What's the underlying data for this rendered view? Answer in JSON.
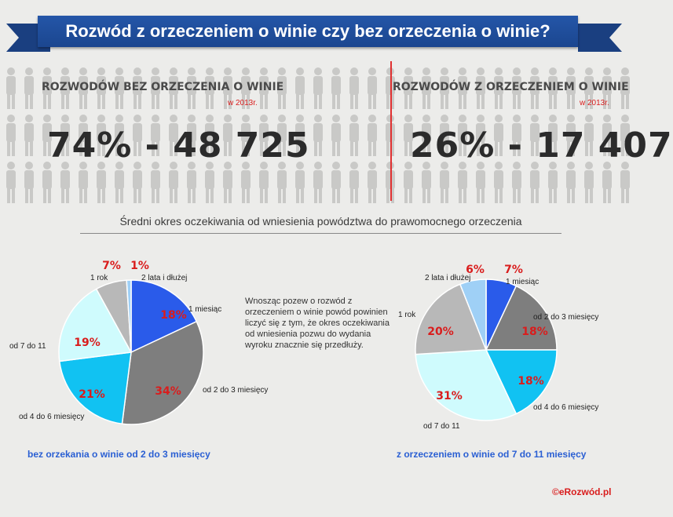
{
  "title": "Rozwód z orzeczeniem o winie czy bez orzeczenia o winie?",
  "stats": {
    "left_label": "ROZWODÓW BEZ ORZECZENIA O WINIE",
    "left_year": "w 2013r.",
    "left_value": "74%  -  48 725",
    "right_label": "ROZWODÓW Z ORZECZENIEM O WINIE",
    "right_year": "w 2013r.",
    "right_value": "26% - 17 407"
  },
  "subtitle": "Średni  okres oczekiwania od wniesienia powództwa do prawomocnego orzeczenia",
  "note": "Wnosząc pozew o rozwód z orzeczeniem o winie powód powinien liczyć się z tym, że okres oczekiwania od wniesienia pozwu do wydania wyroku znacznie się przedłuży.",
  "footer_left": "bez orzekania o winie od 2 do 3 miesięcy",
  "footer_right": "z orzeczeniem o winie od 7 do 11 miesięcy",
  "credit": "©eRozwód.pl",
  "colors": {
    "accent_red": "#d91d1d",
    "banner_blue": "#2456a8",
    "footer_blue": "#2a5fd3"
  },
  "chart_data": [
    {
      "type": "pie",
      "title": "",
      "slices": [
        {
          "label": "1 miesiąc",
          "value": 18,
          "value_label": "18%",
          "color": "#2a5bea"
        },
        {
          "label": "od 2 do 3 miesięcy",
          "value": 34,
          "value_label": "34%",
          "color": "#7e7e7e"
        },
        {
          "label": "od 4 do 6 miesięcy",
          "value": 21,
          "value_label": "21%",
          "color": "#11c2f2"
        },
        {
          "label": "od 7 do 11",
          "value": 19,
          "value_label": "19%",
          "color": "#cffbfd"
        },
        {
          "label": "1 rok",
          "value": 7,
          "value_label": "7%",
          "color": "#b8b8b8"
        },
        {
          "label": "2 lata i dłużej",
          "value": 1,
          "value_label": "1%",
          "color": "#9fd0f6"
        }
      ]
    },
    {
      "type": "pie",
      "title": "",
      "slices": [
        {
          "label": "1 miesiąc",
          "value": 7,
          "value_label": "7%",
          "color": "#2a5bea"
        },
        {
          "label": "od 2 do 3 miesięcy",
          "value": 18,
          "value_label": "18%",
          "color": "#7e7e7e"
        },
        {
          "label": "od 4 do 6 miesięcy",
          "value": 18,
          "value_label": "18%",
          "color": "#11c2f2"
        },
        {
          "label": "od 7 do 11",
          "value": 31,
          "value_label": "31%",
          "color": "#cffbfd"
        },
        {
          "label": "1 rok",
          "value": 20,
          "value_label": "20%",
          "color": "#b8b8b8"
        },
        {
          "label": "2 lata i dłużej",
          "value": 6,
          "value_label": "6%",
          "color": "#9fd0f6"
        }
      ]
    }
  ]
}
